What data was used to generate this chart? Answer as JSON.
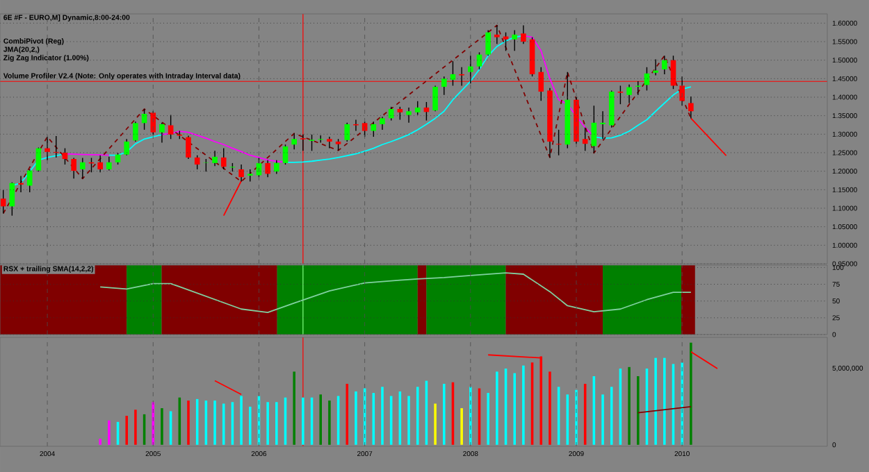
{
  "chart_data": [
    {
      "type": "candlestick",
      "title": "6E #F - EURO,M] Dynamic,8:00-24:00",
      "annotations": [
        "CombiPivot (Reg)",
        "JMA(20,2,)",
        "Zig Zag Indicator (1.00%)",
        "Volume Profiler V2.4 (Note: Only operates with Intraday Interval data)"
      ],
      "x": [
        "2003-08",
        "2003-09",
        "2003-10",
        "2003-11",
        "2003-12",
        "2004-01",
        "2004-02",
        "2004-03",
        "2004-04",
        "2004-05",
        "2004-06",
        "2004-07",
        "2004-08",
        "2004-09",
        "2004-10",
        "2004-11",
        "2004-12",
        "2005-01",
        "2005-02",
        "2005-03",
        "2005-04",
        "2005-05",
        "2005-06",
        "2005-07",
        "2005-08",
        "2005-09",
        "2005-10",
        "2005-11",
        "2005-12",
        "2006-01",
        "2006-02",
        "2006-03",
        "2006-04",
        "2006-05",
        "2006-06",
        "2006-07",
        "2006-08",
        "2006-09",
        "2006-10",
        "2006-11",
        "2006-12",
        "2007-01",
        "2007-02",
        "2007-03",
        "2007-04",
        "2007-05",
        "2007-06",
        "2007-07",
        "2007-08",
        "2007-09",
        "2007-10",
        "2007-11",
        "2007-12",
        "2008-01",
        "2008-02",
        "2008-03",
        "2008-04",
        "2008-05",
        "2008-06",
        "2008-07",
        "2008-08",
        "2008-09",
        "2008-10",
        "2008-11",
        "2008-12",
        "2009-01",
        "2009-02",
        "2009-03",
        "2009-04",
        "2009-05",
        "2009-06",
        "2009-07",
        "2009-08",
        "2009-09",
        "2009-10",
        "2009-11",
        "2009-12",
        "2010-01",
        "2010-02"
      ],
      "ohlc": [
        [
          1.126,
          1.149,
          1.086,
          1.105
        ],
        [
          1.105,
          1.17,
          1.08,
          1.168
        ],
        [
          1.168,
          1.187,
          1.143,
          1.164
        ],
        [
          1.161,
          1.205,
          1.143,
          1.202
        ],
        [
          1.202,
          1.264,
          1.199,
          1.262
        ],
        [
          1.262,
          1.293,
          1.23,
          1.252
        ],
        [
          1.252,
          1.295,
          1.237,
          1.25
        ],
        [
          1.25,
          1.262,
          1.218,
          1.233
        ],
        [
          1.233,
          1.236,
          1.18,
          1.201
        ],
        [
          1.205,
          1.236,
          1.18,
          1.224
        ],
        [
          1.224,
          1.236,
          1.197,
          1.221
        ],
        [
          1.224,
          1.243,
          1.197,
          1.205
        ],
        [
          1.205,
          1.239,
          1.202,
          1.224
        ],
        [
          1.224,
          1.249,
          1.218,
          1.245
        ],
        [
          1.245,
          1.287,
          1.243,
          1.28
        ],
        [
          1.283,
          1.334,
          1.28,
          1.33
        ],
        [
          1.33,
          1.368,
          1.312,
          1.355
        ],
        [
          1.358,
          1.362,
          1.299,
          1.305
        ],
        [
          1.305,
          1.331,
          1.277,
          1.327
        ],
        [
          1.324,
          1.352,
          1.287,
          1.299
        ],
        [
          1.299,
          1.309,
          1.287,
          1.296
        ],
        [
          1.292,
          1.296,
          1.233,
          1.237
        ],
        [
          1.237,
          1.243,
          1.205,
          1.218
        ],
        [
          1.223,
          1.233,
          1.199,
          1.224
        ],
        [
          1.222,
          1.255,
          1.214,
          1.239
        ],
        [
          1.237,
          1.262,
          1.205,
          1.212
        ],
        [
          1.21,
          1.222,
          1.199,
          1.212
        ],
        [
          1.205,
          1.218,
          1.172,
          1.184
        ],
        [
          1.188,
          1.205,
          1.172,
          1.193
        ],
        [
          1.189,
          1.236,
          1.184,
          1.222
        ],
        [
          1.222,
          1.23,
          1.184,
          1.193
        ],
        [
          1.199,
          1.23,
          1.193,
          1.222
        ],
        [
          1.222,
          1.272,
          1.218,
          1.267
        ],
        [
          1.272,
          1.302,
          1.259,
          1.287
        ],
        [
          1.289,
          1.299,
          1.255,
          1.286
        ],
        [
          1.282,
          1.299,
          1.255,
          1.285
        ],
        [
          1.285,
          1.297,
          1.277,
          1.287
        ],
        [
          1.287,
          1.293,
          1.262,
          1.28
        ],
        [
          1.28,
          1.287,
          1.256,
          1.273
        ],
        [
          1.284,
          1.331,
          1.28,
          1.327
        ],
        [
          1.327,
          1.339,
          1.309,
          1.324
        ],
        [
          1.33,
          1.334,
          1.293,
          1.309
        ],
        [
          1.309,
          1.334,
          1.293,
          1.327
        ],
        [
          1.327,
          1.347,
          1.312,
          1.343
        ],
        [
          1.343,
          1.374,
          1.337,
          1.368
        ],
        [
          1.368,
          1.374,
          1.339,
          1.359
        ],
        [
          1.352,
          1.372,
          1.331,
          1.362
        ],
        [
          1.359,
          1.389,
          1.352,
          1.372
        ],
        [
          1.372,
          1.387,
          1.337,
          1.36
        ],
        [
          1.364,
          1.431,
          1.362,
          1.428
        ],
        [
          1.428,
          1.456,
          1.406,
          1.45
        ],
        [
          1.447,
          1.497,
          1.431,
          1.462
        ],
        [
          1.462,
          1.481,
          1.431,
          1.459
        ],
        [
          1.468,
          1.512,
          1.437,
          1.483
        ],
        [
          1.483,
          1.521,
          1.475,
          1.515
        ],
        [
          1.515,
          1.581,
          1.512,
          1.575
        ],
        [
          1.569,
          1.594,
          1.544,
          1.562
        ],
        [
          1.564,
          1.575,
          1.525,
          1.556
        ],
        [
          1.556,
          1.581,
          1.525,
          1.569
        ],
        [
          1.572,
          1.594,
          1.544,
          1.55
        ],
        [
          1.556,
          1.562,
          1.456,
          1.462
        ],
        [
          1.468,
          1.481,
          1.39,
          1.415
        ],
        [
          1.418,
          1.425,
          1.237,
          1.28
        ],
        [
          1.274,
          1.312,
          1.243,
          1.272
        ],
        [
          1.272,
          1.468,
          1.262,
          1.393
        ],
        [
          1.393,
          1.4,
          1.274,
          1.28
        ],
        [
          1.287,
          1.318,
          1.255,
          1.274
        ],
        [
          1.268,
          1.377,
          1.249,
          1.331
        ],
        [
          1.327,
          1.362,
          1.287,
          1.331
        ],
        [
          1.324,
          1.418,
          1.318,
          1.415
        ],
        [
          1.415,
          1.431,
          1.381,
          1.412
        ],
        [
          1.406,
          1.434,
          1.384,
          1.427
        ],
        [
          1.428,
          1.443,
          1.406,
          1.431
        ],
        [
          1.433,
          1.481,
          1.418,
          1.464
        ],
        [
          1.466,
          1.502,
          1.459,
          1.472
        ],
        [
          1.475,
          1.512,
          1.462,
          1.5
        ],
        [
          1.5,
          1.512,
          1.422,
          1.431
        ],
        [
          1.431,
          1.456,
          1.377,
          1.39
        ],
        [
          1.384,
          1.402,
          1.343,
          1.362
        ]
      ],
      "colors": [
        "#ff0000",
        "#00ff00",
        "#ff0000",
        "#00ff00",
        "#00ff00",
        "#ff0000",
        "#ff0000",
        "#ff0000",
        "#ff0000",
        "#00ff00",
        "#ff0000",
        "#ff0000",
        "#00ff00",
        "#00ff00",
        "#00ff00",
        "#00ff00",
        "#00ff00",
        "#ff0000",
        "#00ff00",
        "#ff0000",
        "#ff0000",
        "#ff0000",
        "#ff0000",
        "#00ff00",
        "#00ff00",
        "#ff0000",
        "#00ff00",
        "#ff0000",
        "#00ff00",
        "#00ff00",
        "#ff0000",
        "#00ff00",
        "#00ff00",
        "#00ff00",
        "#ff0000",
        "#00ff00",
        "#00ff00",
        "#ff0000",
        "#ff0000",
        "#00ff00",
        "#ff0000",
        "#ff0000",
        "#00ff00",
        "#00ff00",
        "#00ff00",
        "#ff0000",
        "#00ff00",
        "#00ff00",
        "#ff0000",
        "#00ff00",
        "#00ff00",
        "#00ff00",
        "#ff0000",
        "#00ff00",
        "#00ff00",
        "#00ff00",
        "#ff0000",
        "#ff0000",
        "#00ff00",
        "#ff0000",
        "#ff0000",
        "#ff0000",
        "#ff0000",
        "#ff0000",
        "#00ff00",
        "#ff0000",
        "#ff0000",
        "#00ff00",
        "#00ff00",
        "#00ff00",
        "#ff0000",
        "#00ff00",
        "#00ff00",
        "#00ff00",
        "#00ff00",
        "#00ff00",
        "#ff0000",
        "#ff0000",
        "#ff0000"
      ],
      "series": [
        {
          "type": "line",
          "color": "#00ffff",
          "x": [
            "2003-09",
            "2003-10",
            "2003-12",
            "2004-01",
            "2004-03",
            "2004-05",
            "2004-08",
            "2004-09",
            "2004-10",
            "2004-11",
            "2004-12",
            "2005-01",
            "2005-02",
            "2005-06",
            "2006-04",
            "2006-05",
            "2006-06",
            "2006-07",
            "2006-08",
            "2006-09",
            "2006-10",
            "2006-11",
            "2006-12",
            "2007-01",
            "2007-02",
            "2007-03",
            "2007-04",
            "2007-05",
            "2007-06",
            "2007-07",
            "2007-08",
            "2007-09",
            "2007-10",
            "2007-11",
            "2007-12",
            "2008-01",
            "2008-02",
            "2008-03",
            "2008-04",
            "2008-05",
            "2008-06",
            "2008-07",
            "2008-10",
            "2009-03",
            "2009-04",
            "2009-05",
            "2009-06",
            "2009-07",
            "2009-08",
            "2009-09",
            "2009-10",
            "2009-11",
            "2009-12",
            "2010-01",
            "2010-02"
          ],
          "values": [
            1.161,
            1.168,
            1.23,
            1.237,
            1.247,
            null,
            1.243,
            1.243,
            1.252,
            1.274,
            1.287,
            1.293,
            1.299,
            null,
            1.224,
            1.224,
            1.225,
            1.227,
            1.23,
            1.233,
            1.237,
            1.242,
            1.247,
            1.254,
            1.262,
            1.272,
            1.28,
            1.289,
            1.299,
            1.312,
            1.327,
            1.343,
            1.362,
            1.393,
            1.418,
            1.443,
            1.475,
            1.512,
            1.537,
            1.552,
            1.562,
            1.566,
            null,
            1.293,
            1.289,
            1.29,
            1.297,
            1.308,
            1.324,
            1.339,
            1.362,
            1.384,
            1.406,
            1.422,
            1.428
          ]
        },
        {
          "type": "line",
          "color": "#ff00ff",
          "x": [
            "2004-03",
            "2004-05",
            "2004-07",
            "2004-08",
            "2004-12",
            "2005-02",
            "2005-03",
            "2005-04",
            "2005-05",
            "2005-06",
            "2005-07",
            "2005-08",
            "2005-09",
            "2005-10",
            "2005-11",
            "2005-12",
            "2006-01",
            "2006-02",
            "2006-03",
            "2006-04",
            "2007-01",
            "2008-07",
            "2008-08",
            "2008-09",
            "2008-10",
            "2008-11",
            "2008-12",
            "2009-01",
            "2009-02",
            "2009-03"
          ],
          "values": [
            1.247,
            1.245,
            1.244,
            1.243,
            null,
            1.299,
            1.302,
            1.308,
            1.305,
            1.297,
            1.289,
            1.28,
            1.272,
            1.262,
            1.253,
            1.243,
            1.237,
            1.23,
            1.227,
            1.224,
            null,
            1.566,
            1.562,
            1.525,
            1.45,
            1.393,
            1.381,
            1.349,
            1.318,
            1.293
          ]
        },
        {
          "type": "line",
          "color": "#800000",
          "line_style": "dashed",
          "x": [
            "2003-08",
            "2004-01",
            "2004-05",
            "2004-12",
            "2005-11",
            "2006-05",
            "2006-10",
            "2008-04",
            "2008-10",
            "2008-12",
            "2009-03",
            "2009-11",
            "2010-02"
          ],
          "values": [
            1.086,
            1.293,
            1.18,
            1.368,
            1.172,
            1.302,
            1.256,
            1.594,
            1.237,
            1.468,
            1.249,
            1.512,
            1.343
          ]
        },
        {
          "type": "line",
          "color": "#ff0000",
          "x": [
            "2005-09",
            "2005-11"
          ],
          "values": [
            1.08,
            1.174
          ]
        },
        {
          "type": "line",
          "color": "#ff0000",
          "x": [
            "2010-02",
            "2010-06"
          ],
          "values": [
            1.343,
            1.242
          ]
        }
      ],
      "xlim": [
        "2003-07-20",
        "2011-05-15"
      ],
      "ylim": [
        0.95,
        1.625
      ],
      "xticks": [
        {
          "value": "2004-01",
          "label": null
        },
        {
          "value": "2005-01",
          "label": null
        },
        {
          "value": "2006-01",
          "label": null
        },
        {
          "value": "2007-01",
          "label": null
        },
        {
          "value": "2008-01",
          "label": null
        },
        {
          "value": "2009-01",
          "label": null
        },
        {
          "value": "2010-01",
          "label": null
        }
      ],
      "yticks": [
        {
          "value": 0.95,
          "label": "0.95000"
        },
        {
          "value": 1.0,
          "label": "1.00000"
        },
        {
          "value": 1.05,
          "label": "1.05000"
        },
        {
          "value": 1.1,
          "label": "1.10000"
        },
        {
          "value": 1.15,
          "label": "1.15000"
        },
        {
          "value": 1.2,
          "label": "1.20000"
        },
        {
          "value": 1.25,
          "label": "1.25000"
        },
        {
          "value": 1.3,
          "label": "1.30000"
        },
        {
          "value": 1.35,
          "label": "1.35000"
        },
        {
          "value": 1.4,
          "label": "1.40000"
        },
        {
          "value": 1.45,
          "label": "1.45000"
        },
        {
          "value": 1.5,
          "label": "1.50000"
        },
        {
          "value": 1.55,
          "label": "1.55000"
        },
        {
          "value": 1.6,
          "label": "1.60000"
        }
      ],
      "ref_lines": [
        {
          "axis": "y",
          "value": 1.443,
          "color": "#ff0000"
        },
        {
          "axis": "x",
          "value": "2006-06",
          "color": "#ff0000"
        }
      ],
      "grid": true,
      "tick_labels": "y"
    },
    {
      "type": "line",
      "title": "RSX + trailing SMA(14,2,2)",
      "series": [
        {
          "color": "#80d0a0",
          "x": [
            "2004-07",
            "2004-10",
            "2005-01",
            "2005-03",
            "2005-07",
            "2005-11",
            "2006-02",
            "2006-05",
            "2006-09",
            "2007-01",
            "2007-05",
            "2007-07",
            "2007-10",
            "2008-01",
            "2008-05",
            "2008-07",
            "2008-10",
            "2008-12",
            "2009-03",
            "2009-06",
            "2009-09",
            "2009-12",
            "2010-02"
          ],
          "values": [
            71,
            68,
            76,
            76,
            57,
            38,
            33,
            47,
            65,
            77,
            81,
            83,
            85,
            88,
            92,
            90,
            64,
            43,
            34,
            38,
            52,
            63,
            63
          ]
        }
      ],
      "bands": [
        {
          "axis": "x",
          "from": "2003-07-20",
          "to": "2004-10-01",
          "color": "#800000"
        },
        {
          "axis": "x",
          "from": "2004-10-01",
          "to": "2005-01-30",
          "color": "#008000"
        },
        {
          "axis": "x",
          "from": "2005-01-30",
          "to": "2006-03-03",
          "color": "#800000"
        },
        {
          "axis": "x",
          "from": "2006-03-03",
          "to": "2007-07-01",
          "color": "#008000"
        },
        {
          "axis": "x",
          "from": "2007-07-01",
          "to": "2007-08-01",
          "color": "#800000"
        },
        {
          "axis": "x",
          "from": "2007-08-01",
          "to": "2008-05-01",
          "color": "#008000"
        },
        {
          "axis": "x",
          "from": "2008-05-01",
          "to": "2009-04-01",
          "color": "#800000"
        },
        {
          "axis": "x",
          "from": "2009-04-01",
          "to": "2009-12-28",
          "color": "#008000"
        },
        {
          "axis": "x",
          "from": "2009-12-28",
          "to": "2010-02-15",
          "color": "#800000"
        }
      ],
      "ref_lines": [
        {
          "axis": "x",
          "value": "2006-06",
          "color": "#80ff80"
        }
      ],
      "xlim": [
        "2003-07-20",
        "2011-05-15"
      ],
      "ylim": [
        0,
        103.5
      ],
      "xticks": [
        {
          "value": "2004-01",
          "label": null
        },
        {
          "value": "2005-01",
          "label": null
        },
        {
          "value": "2006-01",
          "label": null
        },
        {
          "value": "2007-01",
          "label": null
        },
        {
          "value": "2008-01",
          "label": null
        },
        {
          "value": "2009-01",
          "label": null
        },
        {
          "value": "2010-01",
          "label": null
        }
      ],
      "yticks": [
        0,
        25,
        50,
        75,
        100
      ],
      "grid": true,
      "tick_labels": "y"
    },
    {
      "type": "bar",
      "series": [
        {
          "type": "bar",
          "x": [
            "2004-07",
            "2004-08",
            "2004-09",
            "2004-10",
            "2004-11",
            "2004-12",
            "2005-01",
            "2005-02",
            "2005-03",
            "2005-04",
            "2005-05",
            "2005-06",
            "2005-07",
            "2005-08",
            "2005-09",
            "2005-10",
            "2005-11",
            "2005-12",
            "2006-01",
            "2006-02",
            "2006-03",
            "2006-04",
            "2006-05",
            "2006-06",
            "2006-07",
            "2006-08",
            "2006-09",
            "2006-10",
            "2006-11",
            "2006-12",
            "2007-01",
            "2007-02",
            "2007-03",
            "2007-04",
            "2007-05",
            "2007-06",
            "2007-07",
            "2007-08",
            "2007-09",
            "2007-10",
            "2007-11",
            "2007-12",
            "2008-01",
            "2008-02",
            "2008-03",
            "2008-04",
            "2008-05",
            "2008-06",
            "2008-07",
            "2008-08",
            "2008-09",
            "2008-10",
            "2008-11",
            "2008-12",
            "2009-01",
            "2009-02",
            "2009-03",
            "2009-04",
            "2009-05",
            "2009-06",
            "2009-07",
            "2009-08",
            "2009-09",
            "2009-10",
            "2009-11",
            "2009-12",
            "2010-01",
            "2010-02"
          ],
          "values": [
            400000,
            1600000,
            1500000,
            1900000,
            2300000,
            2000000,
            2800000,
            2400000,
            2200000,
            3100000,
            2900000,
            3000000,
            2900000,
            2900000,
            2700000,
            2800000,
            3200000,
            2500000,
            3200000,
            2800000,
            2800000,
            3100000,
            4800000,
            3100000,
            3100000,
            3300000,
            2900000,
            3200000,
            4000000,
            3500000,
            3700000,
            3400000,
            3800000,
            3200000,
            3500000,
            3200000,
            3800000,
            4200000,
            2700000,
            4000000,
            4100000,
            2400000,
            3800000,
            3700000,
            3400000,
            4800000,
            5000000,
            4700000,
            5200000,
            5400000,
            5800000,
            4800000,
            3800000,
            3300000,
            3600000,
            4000000,
            4500000,
            3300000,
            3800000,
            5000000,
            5100000,
            4500000,
            5000000,
            5700000,
            5700000,
            5300000,
            5400000,
            6700000
          ],
          "colors": [
            "#ff00ff",
            "#ff00ff",
            "#00ffff",
            "#ff0000",
            "#ff0000",
            "#008000",
            "#ff00ff",
            "#008000",
            "#00ffff",
            "#008000",
            "#ff0000",
            "#00ffff",
            "#00ffff",
            "#00ffff",
            "#00ffff",
            "#00ffff",
            "#00ffff",
            "#00ffff",
            "#00ffff",
            "#00ffff",
            "#00ffff",
            "#00ffff",
            "#008000",
            "#00ffff",
            "#00ffff",
            "#008000",
            "#008000",
            "#00ffff",
            "#ff0000",
            "#00ffff",
            "#00ffff",
            "#00ffff",
            "#00ffff",
            "#00ffff",
            "#00ffff",
            "#00ffff",
            "#00ffff",
            "#00ffff",
            "#ffff00",
            "#00ffff",
            "#ff0000",
            "#ffff00",
            "#00ffff",
            "#ff0000",
            "#00ffff",
            "#00ffff",
            "#00ffff",
            "#00ffff",
            "#00ffff",
            "#ff0000",
            "#ff0000",
            "#ff0000",
            "#00ffff",
            "#00ffff",
            "#00ffff",
            "#ff0000",
            "#00ffff",
            "#00ffff",
            "#00ffff",
            "#00ffff",
            "#008000",
            "#008000",
            "#00ffff",
            "#00ffff",
            "#00ffff",
            "#00ffff",
            "#00ffff",
            "#008000"
          ]
        },
        {
          "type": "line",
          "color": "#800000",
          "x": [
            "2009-08",
            "2010-02"
          ],
          "values": [
            2100000,
            2500000
          ]
        },
        {
          "type": "line",
          "color": "#ff0000",
          "x": [
            "2005-08",
            "2005-11"
          ],
          "values": [
            4200000,
            3300000
          ]
        },
        {
          "type": "line",
          "color": "#ff0000",
          "x": [
            "2008-03",
            "2008-09"
          ],
          "values": [
            5900000,
            5700000
          ]
        },
        {
          "type": "line",
          "color": "#ff0000",
          "x": [
            "2010-02",
            "2010-05"
          ],
          "values": [
            6100000,
            5000000
          ]
        }
      ],
      "ref_lines": [
        {
          "axis": "x",
          "value": "2006-06",
          "color": "#ff0000"
        }
      ],
      "xlim": [
        "2003-07-20",
        "2011-05-15"
      ],
      "ylim": [
        -100000,
        7050000
      ],
      "xticks": [
        {
          "value": "2004-01",
          "label": "2004"
        },
        {
          "value": "2005-01",
          "label": "2005"
        },
        {
          "value": "2006-01",
          "label": "2006"
        },
        {
          "value": "2007-01",
          "label": "2007"
        },
        {
          "value": "2008-01",
          "label": "2008"
        },
        {
          "value": "2009-01",
          "label": "2009"
        },
        {
          "value": "2010-01",
          "label": "2010"
        }
      ],
      "yticks": [
        0,
        {
          "value": 5000000,
          "label": "5,000,000"
        }
      ],
      "grid": "x"
    }
  ]
}
